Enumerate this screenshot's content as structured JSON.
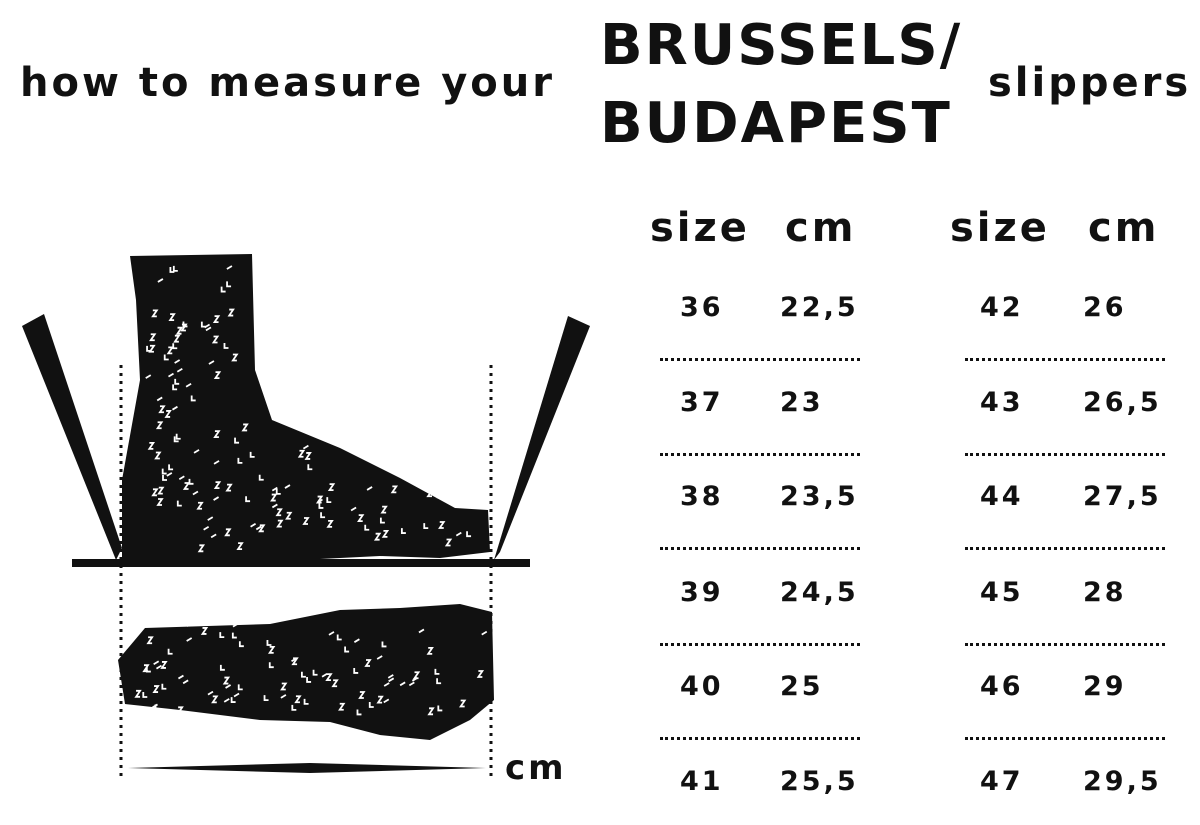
{
  "title": {
    "lead": "how to measure your",
    "models": [
      "BRUSSELS/",
      "BUDAPEST"
    ],
    "trail": "slippers"
  },
  "table": {
    "headers": [
      "size",
      "cm",
      "size",
      "cm"
    ],
    "left": [
      [
        "36",
        "22,5"
      ],
      [
        "37",
        "23"
      ],
      [
        "38",
        "23,5"
      ],
      [
        "39",
        "24,5"
      ],
      [
        "40",
        "25"
      ],
      [
        "41",
        "25,5"
      ]
    ],
    "right": [
      [
        "42",
        "26"
      ],
      [
        "43",
        "26,5"
      ],
      [
        "44",
        "27,5"
      ],
      [
        "45",
        "28"
      ],
      [
        "46",
        "29"
      ],
      [
        "47",
        "29,5"
      ]
    ]
  },
  "illustration": {
    "unit_label": "cm"
  }
}
